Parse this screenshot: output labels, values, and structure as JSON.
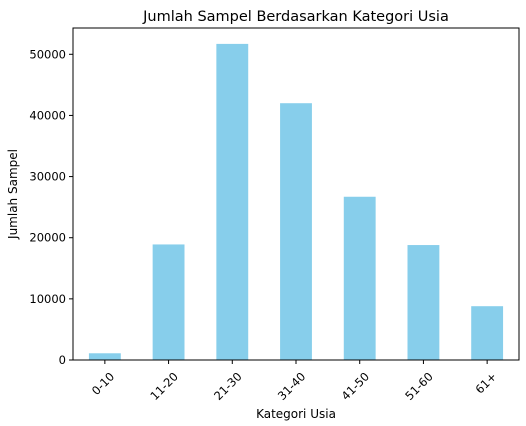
{
  "chart_data": {
    "type": "bar",
    "title": "Jumlah Sampel Berdasarkan Kategori Usia",
    "xlabel": "Kategori Usia",
    "ylabel": "Jumlah Sampel",
    "categories": [
      "0-10",
      "11-20",
      "21-30",
      "31-40",
      "41-50",
      "51-60",
      "61+"
    ],
    "values": [
      1100,
      18900,
      51700,
      42000,
      26700,
      18800,
      8800
    ],
    "yticks": [
      0,
      10000,
      20000,
      30000,
      40000,
      50000
    ],
    "ylim": [
      0,
      54300
    ],
    "grid": false,
    "bar_color": "#87ceeb"
  }
}
